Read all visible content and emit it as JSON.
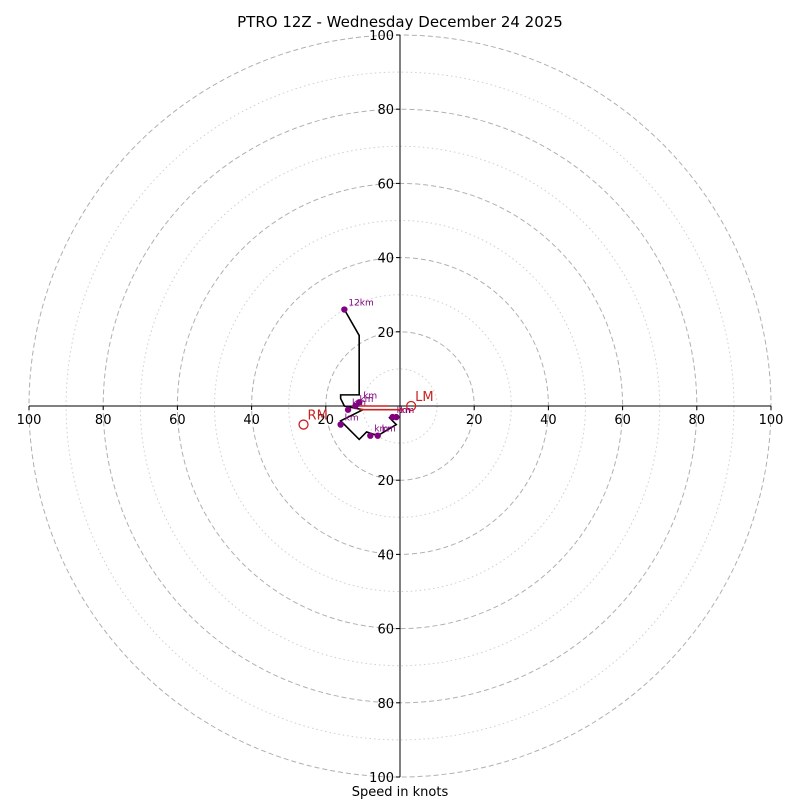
{
  "chart_data": {
    "type": "hodograph",
    "title": "PTRO 12Z - Wednesday December 24 2025",
    "xlabel": "Speed in knots",
    "range": 100,
    "ring_major": [
      20,
      40,
      60,
      80,
      100
    ],
    "ring_minor": [
      10,
      30,
      50,
      70,
      90
    ],
    "tick_labels": {
      "left": [
        "100",
        "80",
        "60",
        "40",
        "20"
      ],
      "right": [
        "20",
        "40",
        "60",
        "80",
        "100"
      ],
      "top": [
        "100",
        "80",
        "60",
        "40",
        "20"
      ],
      "bottom": [
        "20",
        "40",
        "60",
        "80",
        "100"
      ]
    },
    "tick_values": {
      "left": [
        -100,
        -80,
        -60,
        -40,
        -20
      ],
      "right": [
        20,
        40,
        60,
        80,
        100
      ],
      "top": [
        100,
        80,
        60,
        40,
        20
      ],
      "bottom": [
        -20,
        -40,
        -60,
        -80,
        -100
      ]
    },
    "hodograph_line": [
      [
        -3,
        -3
      ],
      [
        -1,
        -5
      ],
      [
        -6,
        -8
      ],
      [
        -9,
        -7
      ],
      [
        -11,
        -9
      ],
      [
        -16,
        -4
      ],
      [
        -12,
        -2
      ],
      [
        -10,
        -1
      ],
      [
        -15,
        0
      ],
      [
        -16,
        2
      ],
      [
        -16,
        3
      ],
      [
        -11,
        3
      ],
      [
        -11,
        19
      ],
      [
        -15,
        26
      ]
    ],
    "height_points": [
      {
        "label": "km",
        "u": -1,
        "v": -3
      },
      {
        "label": "km",
        "u": -2,
        "v": -3
      },
      {
        "label": "km",
        "u": -8,
        "v": -8
      },
      {
        "label": "km",
        "u": -6,
        "v": -8
      },
      {
        "label": "km",
        "u": -16,
        "v": -5
      },
      {
        "label": "km",
        "u": -14,
        "v": -1
      },
      {
        "label": "km",
        "u": -12,
        "v": 0
      },
      {
        "label": "km",
        "u": -11,
        "v": 1
      },
      {
        "label": "12km",
        "u": -15,
        "v": 26
      }
    ],
    "storm_motion_vectors": [
      [
        [
          -11,
          0
        ],
        [
          -3,
          0
        ]
      ],
      [
        [
          -11,
          -1
        ],
        [
          1,
          -1
        ]
      ]
    ],
    "storm_motion": [
      {
        "label": "RM",
        "u": -26,
        "v": -5
      },
      {
        "label": "LM",
        "u": 3,
        "v": 0
      }
    ],
    "colors": {
      "hodograph": "#000000",
      "points": "#800080",
      "storm_motion": "#cc2222",
      "grid": "#b0b0b0",
      "axes": "#000000"
    }
  }
}
